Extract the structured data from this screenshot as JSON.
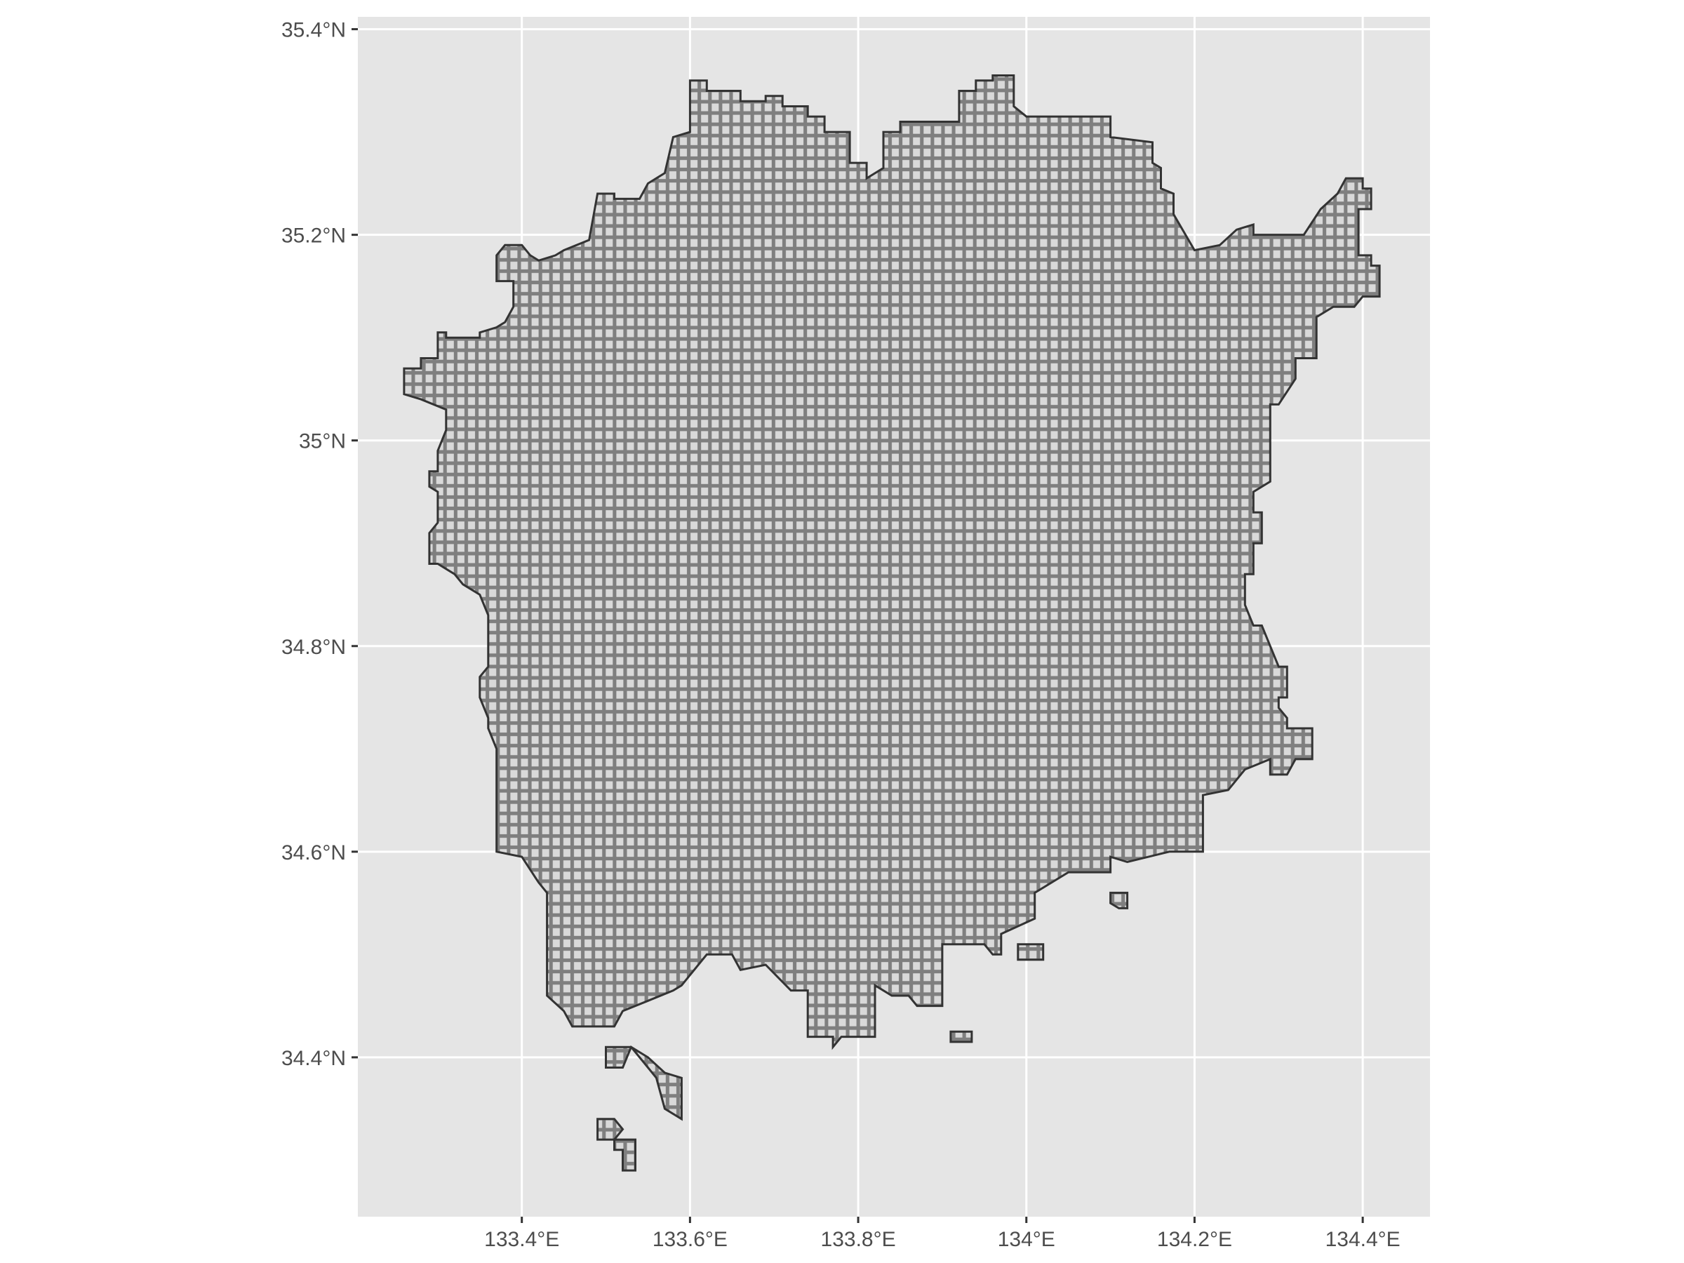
{
  "chart_data": {
    "type": "map",
    "description_of_layer": "grid mesh cells",
    "x_axis": {
      "ticks": [
        {
          "value": 133.4,
          "label": "133.4°E"
        },
        {
          "value": 133.6,
          "label": "133.6°E"
        },
        {
          "value": 133.8,
          "label": "133.8°E"
        },
        {
          "value": 134.0,
          "label": "134°E"
        },
        {
          "value": 134.2,
          "label": "134.2°E"
        },
        {
          "value": 134.4,
          "label": "134.4°E"
        }
      ],
      "range": [
        133.205,
        134.48
      ]
    },
    "y_axis": {
      "ticks": [
        {
          "value": 34.4,
          "label": "34.4°N"
        },
        {
          "value": 34.6,
          "label": "34.6°N"
        },
        {
          "value": 34.8,
          "label": "34.8°N"
        },
        {
          "value": 35.0,
          "label": "35°N"
        },
        {
          "value": 35.2,
          "label": "35.2°N"
        },
        {
          "value": 35.4,
          "label": "35.4°N"
        }
      ],
      "range": [
        34.245,
        35.412
      ]
    },
    "grid": true,
    "cell_size_deg": {
      "lon": 0.0125,
      "lat": 0.008333
    },
    "region_outline": [
      [
        133.6,
        35.35
      ],
      [
        133.62,
        35.35
      ],
      [
        133.62,
        35.34
      ],
      [
        133.66,
        35.34
      ],
      [
        133.66,
        35.33
      ],
      [
        133.69,
        35.33
      ],
      [
        133.69,
        35.335
      ],
      [
        133.71,
        35.335
      ],
      [
        133.71,
        35.325
      ],
      [
        133.74,
        35.325
      ],
      [
        133.74,
        35.315
      ],
      [
        133.76,
        35.315
      ],
      [
        133.76,
        35.3
      ],
      [
        133.79,
        35.3
      ],
      [
        133.79,
        35.27
      ],
      [
        133.81,
        35.27
      ],
      [
        133.81,
        35.255
      ],
      [
        133.83,
        35.265
      ],
      [
        133.83,
        35.3
      ],
      [
        133.85,
        35.3
      ],
      [
        133.85,
        35.31
      ],
      [
        133.92,
        35.31
      ],
      [
        133.92,
        35.34
      ],
      [
        133.94,
        35.34
      ],
      [
        133.94,
        35.35
      ],
      [
        133.96,
        35.35
      ],
      [
        133.96,
        35.355
      ],
      [
        133.985,
        35.355
      ],
      [
        133.985,
        35.325
      ],
      [
        134.0,
        35.315
      ],
      [
        134.1,
        35.315
      ],
      [
        134.1,
        35.295
      ],
      [
        134.15,
        35.29
      ],
      [
        134.15,
        35.27
      ],
      [
        134.16,
        35.265
      ],
      [
        134.16,
        35.245
      ],
      [
        134.175,
        35.24
      ],
      [
        134.175,
        35.22
      ],
      [
        134.2,
        35.185
      ],
      [
        134.23,
        35.19
      ],
      [
        134.25,
        35.205
      ],
      [
        134.27,
        35.21
      ],
      [
        134.27,
        35.2
      ],
      [
        134.33,
        35.2
      ],
      [
        134.35,
        35.225
      ],
      [
        134.37,
        35.24
      ],
      [
        134.38,
        35.255
      ],
      [
        134.4,
        35.255
      ],
      [
        134.4,
        35.245
      ],
      [
        134.41,
        35.245
      ],
      [
        134.41,
        35.225
      ],
      [
        134.395,
        35.225
      ],
      [
        134.395,
        35.18
      ],
      [
        134.41,
        35.18
      ],
      [
        134.41,
        35.17
      ],
      [
        134.42,
        35.17
      ],
      [
        134.42,
        35.14
      ],
      [
        134.4,
        35.14
      ],
      [
        134.39,
        35.13
      ],
      [
        134.365,
        35.13
      ],
      [
        134.345,
        35.12
      ],
      [
        134.345,
        35.08
      ],
      [
        134.32,
        35.08
      ],
      [
        134.32,
        35.06
      ],
      [
        134.3,
        35.035
      ],
      [
        134.29,
        35.035
      ],
      [
        134.29,
        34.96
      ],
      [
        134.27,
        34.95
      ],
      [
        134.27,
        34.93
      ],
      [
        134.28,
        34.93
      ],
      [
        134.28,
        34.9
      ],
      [
        134.27,
        34.9
      ],
      [
        134.27,
        34.87
      ],
      [
        134.26,
        34.87
      ],
      [
        134.26,
        34.84
      ],
      [
        134.27,
        34.82
      ],
      [
        134.28,
        34.82
      ],
      [
        134.29,
        34.8
      ],
      [
        134.3,
        34.78
      ],
      [
        134.31,
        34.78
      ],
      [
        134.31,
        34.75
      ],
      [
        134.3,
        34.75
      ],
      [
        134.3,
        34.74
      ],
      [
        134.31,
        34.73
      ],
      [
        134.31,
        34.72
      ],
      [
        134.34,
        34.72
      ],
      [
        134.34,
        34.69
      ],
      [
        134.32,
        34.69
      ],
      [
        134.31,
        34.675
      ],
      [
        134.29,
        34.675
      ],
      [
        134.29,
        34.69
      ],
      [
        134.26,
        34.68
      ],
      [
        134.24,
        34.66
      ],
      [
        134.21,
        34.655
      ],
      [
        134.21,
        34.63
      ],
      [
        134.21,
        34.6
      ],
      [
        134.17,
        34.6
      ],
      [
        134.12,
        34.59
      ],
      [
        134.1,
        34.595
      ],
      [
        134.1,
        34.58
      ],
      [
        134.05,
        34.58
      ],
      [
        134.01,
        34.56
      ],
      [
        134.01,
        34.535
      ],
      [
        133.97,
        34.52
      ],
      [
        133.97,
        34.5
      ],
      [
        133.96,
        34.5
      ],
      [
        133.95,
        34.51
      ],
      [
        133.9,
        34.51
      ],
      [
        133.9,
        34.45
      ],
      [
        133.87,
        34.45
      ],
      [
        133.86,
        34.46
      ],
      [
        133.84,
        34.46
      ],
      [
        133.82,
        34.47
      ],
      [
        133.82,
        34.42
      ],
      [
        133.78,
        34.42
      ],
      [
        133.77,
        34.41
      ],
      [
        133.77,
        34.42
      ],
      [
        133.74,
        34.42
      ],
      [
        133.74,
        34.465
      ],
      [
        133.72,
        34.465
      ],
      [
        133.69,
        34.49
      ],
      [
        133.66,
        34.485
      ],
      [
        133.65,
        34.5
      ],
      [
        133.62,
        34.5
      ],
      [
        133.59,
        34.47
      ],
      [
        133.58,
        34.465
      ],
      [
        133.55,
        34.455
      ],
      [
        133.52,
        34.445
      ],
      [
        133.51,
        34.43
      ],
      [
        133.46,
        34.43
      ],
      [
        133.45,
        34.445
      ],
      [
        133.43,
        34.46
      ],
      [
        133.43,
        34.56
      ],
      [
        133.42,
        34.57
      ],
      [
        133.4,
        34.595
      ],
      [
        133.37,
        34.6
      ],
      [
        133.37,
        34.65
      ],
      [
        133.37,
        34.7
      ],
      [
        133.36,
        34.72
      ],
      [
        133.36,
        34.73
      ],
      [
        133.35,
        34.75
      ],
      [
        133.35,
        34.77
      ],
      [
        133.36,
        34.78
      ],
      [
        133.36,
        34.83
      ],
      [
        133.35,
        34.85
      ],
      [
        133.33,
        34.86
      ],
      [
        133.32,
        34.87
      ],
      [
        133.3,
        34.88
      ],
      [
        133.29,
        34.88
      ],
      [
        133.29,
        34.91
      ],
      [
        133.3,
        34.92
      ],
      [
        133.3,
        34.95
      ],
      [
        133.29,
        34.955
      ],
      [
        133.29,
        34.97
      ],
      [
        133.3,
        34.97
      ],
      [
        133.3,
        34.99
      ],
      [
        133.31,
        35.01
      ],
      [
        133.31,
        35.03
      ],
      [
        133.28,
        35.04
      ],
      [
        133.26,
        35.045
      ],
      [
        133.26,
        35.07
      ],
      [
        133.28,
        35.07
      ],
      [
        133.28,
        35.08
      ],
      [
        133.3,
        35.08
      ],
      [
        133.3,
        35.105
      ],
      [
        133.31,
        35.105
      ],
      [
        133.31,
        35.1
      ],
      [
        133.35,
        35.1
      ],
      [
        133.35,
        35.105
      ],
      [
        133.37,
        35.11
      ],
      [
        133.38,
        35.115
      ],
      [
        133.39,
        35.13
      ],
      [
        133.39,
        35.155
      ],
      [
        133.37,
        35.155
      ],
      [
        133.37,
        35.18
      ],
      [
        133.38,
        35.19
      ],
      [
        133.4,
        35.19
      ],
      [
        133.41,
        35.18
      ],
      [
        133.42,
        35.175
      ],
      [
        133.44,
        35.18
      ],
      [
        133.45,
        35.185
      ],
      [
        133.48,
        35.195
      ],
      [
        133.49,
        35.24
      ],
      [
        133.51,
        35.24
      ],
      [
        133.51,
        35.235
      ],
      [
        133.54,
        35.235
      ],
      [
        133.55,
        35.25
      ],
      [
        133.57,
        35.26
      ],
      [
        133.58,
        35.295
      ],
      [
        133.6,
        35.3
      ],
      [
        133.6,
        35.35
      ]
    ],
    "islands": [
      [
        [
          133.5,
          34.41
        ],
        [
          133.53,
          34.41
        ],
        [
          133.55,
          34.39
        ],
        [
          133.56,
          34.38
        ],
        [
          133.57,
          34.35
        ],
        [
          133.59,
          34.34
        ],
        [
          133.59,
          34.38
        ],
        [
          133.57,
          34.385
        ],
        [
          133.55,
          34.4
        ],
        [
          133.53,
          34.41
        ],
        [
          133.52,
          34.39
        ],
        [
          133.5,
          34.39
        ]
      ],
      [
        [
          133.49,
          34.34
        ],
        [
          133.51,
          34.34
        ],
        [
          133.52,
          34.33
        ],
        [
          133.51,
          34.32
        ],
        [
          133.49,
          34.32
        ]
      ],
      [
        [
          133.51,
          34.32
        ],
        [
          133.535,
          34.32
        ],
        [
          133.535,
          34.29
        ],
        [
          133.52,
          34.29
        ],
        [
          133.52,
          34.31
        ],
        [
          133.51,
          34.31
        ]
      ],
      [
        [
          134.1,
          34.56
        ],
        [
          134.12,
          34.56
        ],
        [
          134.12,
          34.545
        ],
        [
          134.11,
          34.545
        ],
        [
          134.1,
          34.55
        ]
      ],
      [
        [
          133.91,
          34.425
        ],
        [
          133.935,
          34.425
        ],
        [
          133.935,
          34.415
        ],
        [
          133.91,
          34.415
        ]
      ],
      [
        [
          133.99,
          34.51
        ],
        [
          134.02,
          34.51
        ],
        [
          134.02,
          34.495
        ],
        [
          133.99,
          34.495
        ]
      ]
    ]
  }
}
